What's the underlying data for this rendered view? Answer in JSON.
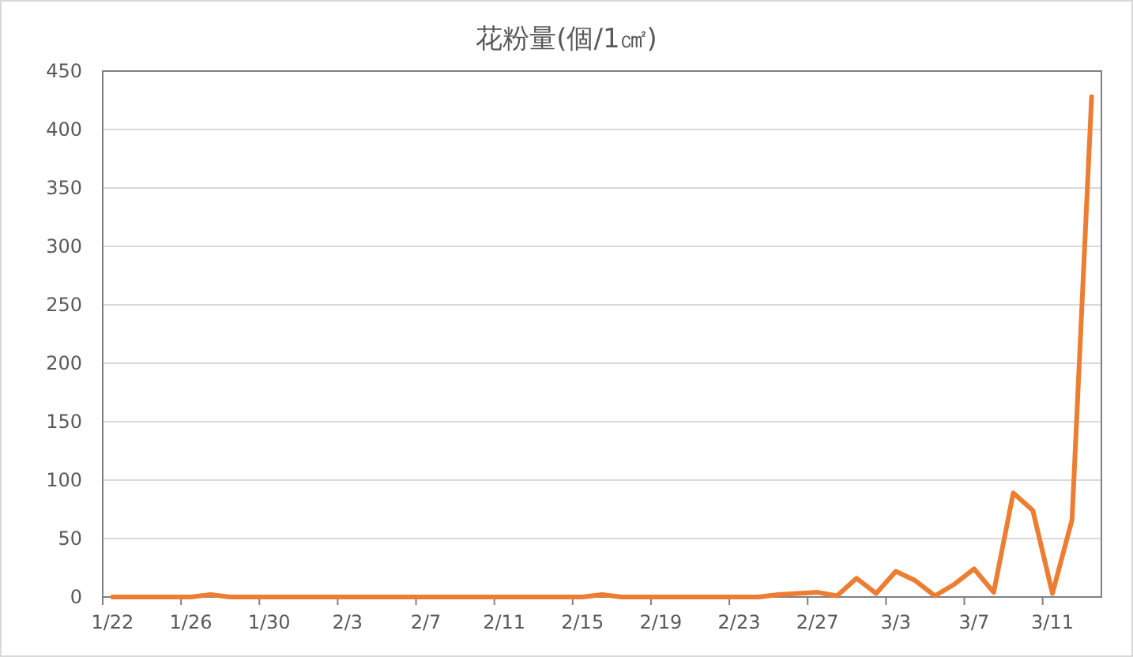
{
  "chart_data": {
    "type": "line",
    "title": "花粉量(個/1㎠)",
    "categories": [
      "1/22",
      null,
      null,
      null,
      "1/26",
      null,
      null,
      null,
      "1/30",
      null,
      null,
      null,
      "2/3",
      null,
      null,
      null,
      "2/7",
      null,
      null,
      null,
      "2/11",
      null,
      null,
      null,
      "2/15",
      null,
      null,
      null,
      "2/19",
      null,
      null,
      null,
      "2/23",
      null,
      null,
      null,
      "2/27",
      null,
      null,
      null,
      "3/3",
      null,
      null,
      null,
      "3/7",
      null,
      null,
      null,
      "3/11",
      null,
      null
    ],
    "series": [
      {
        "color": "#ed7d31",
        "values": [
          0,
          0,
          0,
          0,
          0,
          2,
          0,
          0,
          0,
          0,
          0,
          0,
          0,
          0,
          0,
          0,
          0,
          0,
          0,
          0,
          0,
          0,
          0,
          0,
          0,
          2,
          0,
          0,
          0,
          0,
          0,
          0,
          0,
          0,
          2,
          3,
          4,
          1,
          16,
          3,
          22,
          14,
          1,
          11,
          24,
          4,
          89,
          74,
          3,
          66,
          428
        ]
      }
    ],
    "ylim": [
      0,
      450
    ],
    "yticks": [
      0,
      50,
      100,
      150,
      200,
      250,
      300,
      350,
      400,
      450
    ],
    "grid": "y",
    "marker": "none",
    "line_style": "solid"
  }
}
